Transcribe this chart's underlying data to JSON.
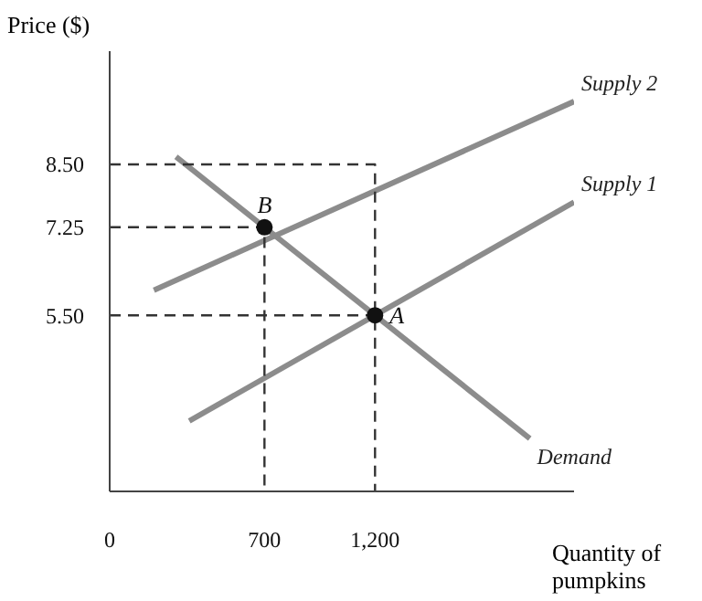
{
  "chart_data": {
    "type": "line",
    "xlabel": "Quantity of pumpkins",
    "ylabel": "Price ($)",
    "xlim": [
      0,
      2100
    ],
    "xticks": [
      0,
      700,
      {
        "value": 1200,
        "label": "1,200"
      }
    ],
    "ylim": [
      2,
      10.75
    ],
    "yticks": [
      {
        "value": 5.5,
        "label": "5.50"
      },
      {
        "value": 7.25,
        "label": "7.25"
      },
      {
        "value": 8.5,
        "label": "8.50"
      }
    ],
    "grid": false,
    "legend": false,
    "series": [
      {
        "name": "Supply 2",
        "color": "#8c8c8c",
        "x": [
          200,
          2100
        ],
        "values": [
          6.0,
          9.75
        ]
      },
      {
        "name": "Supply 1",
        "color": "#8c8c8c",
        "x": [
          360,
          2100
        ],
        "values": [
          3.4,
          7.75
        ]
      },
      {
        "name": "Demand",
        "color": "#8c8c8c",
        "x": [
          300,
          1900
        ],
        "values": [
          8.65,
          3.05
        ]
      },
      {
        "color": "#333333",
        "line_style": "dashed",
        "x": [
          0,
          700,
          700
        ],
        "values": [
          7.25,
          7.25,
          2
        ]
      },
      {
        "color": "#333333",
        "line_style": "dashed",
        "x": [
          0,
          1200
        ],
        "values": [
          5.5,
          5.5
        ]
      },
      {
        "color": "#333333",
        "line_style": "dashed",
        "x": [
          0,
          1200,
          1200
        ],
        "values": [
          8.5,
          8.5,
          2
        ]
      },
      {
        "type": "scatter",
        "marker": "circle",
        "color": "#111111",
        "x": [
          700,
          1200
        ],
        "values": [
          7.25,
          5.5
        ]
      }
    ],
    "annotations": [
      {
        "text": "B",
        "x": 700,
        "y": 7.25
      },
      {
        "text": "A",
        "x": 1200,
        "y": 5.5
      }
    ]
  }
}
